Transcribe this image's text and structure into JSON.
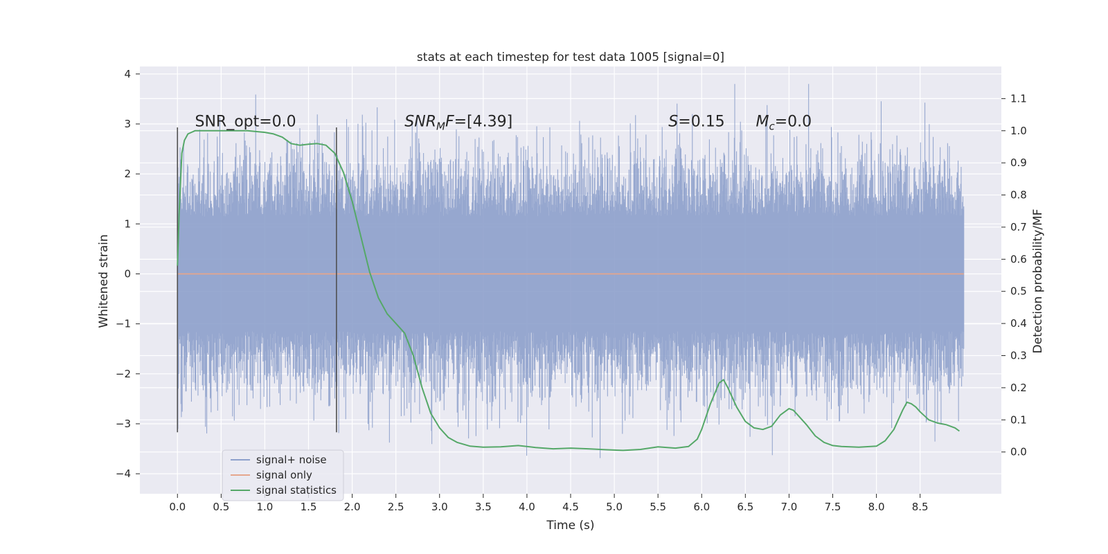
{
  "chart_data": {
    "type": "line",
    "title": "stats at each timestep for test data 1005 [signal=0]",
    "xlabel": "Time (s)",
    "ylabel": "Whitened strain",
    "y2label": "Detection probability/MF",
    "xlim": [
      -0.43,
      9.43
    ],
    "ylim": [
      -4.4,
      4.15
    ],
    "y2lim": [
      -0.13,
      1.2
    ],
    "xticks": [
      0.0,
      0.5,
      1.0,
      1.5,
      2.0,
      2.5,
      3.0,
      3.5,
      4.0,
      4.5,
      5.0,
      5.5,
      6.0,
      6.5,
      7.0,
      7.5,
      8.0,
      8.5
    ],
    "xtick_labels": [
      "0.0",
      "0.5",
      "1.0",
      "1.5",
      "2.0",
      "2.5",
      "3.0",
      "3.5",
      "4.0",
      "4.5",
      "5.0",
      "5.5",
      "6.0",
      "6.5",
      "7.0",
      "7.5",
      "8.0",
      "8.5"
    ],
    "yticks": [
      -4,
      -3,
      -2,
      -1,
      0,
      1,
      2,
      3,
      4
    ],
    "ytick_labels": [
      "−4",
      "−3",
      "−2",
      "−1",
      "0",
      "1",
      "2",
      "3",
      "4"
    ],
    "y2ticks": [
      0.0,
      0.1,
      0.2,
      0.3,
      0.4,
      0.5,
      0.6,
      0.7,
      0.8,
      0.9,
      1.0,
      1.1
    ],
    "y2tick_labels": [
      "0.0",
      "0.1",
      "0.2",
      "0.3",
      "0.4",
      "0.5",
      "0.6",
      "0.7",
      "0.8",
      "0.9",
      "1.0",
      "1.1"
    ],
    "grid": true,
    "legend_position": "lower-left",
    "series": [
      {
        "name": "signal+ noise",
        "color": "#8da0cb",
        "kind": "noise",
        "x_range": [
          0.0,
          9.0
        ],
        "typical_range": [
          -1.9,
          1.9
        ],
        "extremes": [
          -4.0,
          3.8
        ]
      },
      {
        "name": "signal only",
        "color": "#e5a68c",
        "x": [
          0.0,
          9.0
        ],
        "y": [
          0.0,
          0.0
        ]
      },
      {
        "name": "signal statistics",
        "color": "#55a868",
        "axis": "right",
        "x": [
          0.0,
          0.02,
          0.05,
          0.08,
          0.12,
          0.16,
          0.2,
          0.3,
          0.5,
          0.8,
          1.0,
          1.1,
          1.2,
          1.3,
          1.4,
          1.5,
          1.6,
          1.7,
          1.8,
          1.9,
          2.0,
          2.1,
          2.2,
          2.3,
          2.4,
          2.5,
          2.6,
          2.7,
          2.8,
          2.9,
          3.0,
          3.1,
          3.2,
          3.35,
          3.5,
          3.7,
          3.9,
          4.1,
          4.3,
          4.5,
          4.7,
          4.9,
          5.1,
          5.3,
          5.5,
          5.7,
          5.85,
          5.95,
          6.0,
          6.1,
          6.2,
          6.25,
          6.3,
          6.4,
          6.5,
          6.6,
          6.7,
          6.8,
          6.9,
          7.0,
          7.05,
          7.1,
          7.2,
          7.3,
          7.4,
          7.5,
          7.6,
          7.8,
          8.0,
          8.1,
          8.2,
          8.3,
          8.35,
          8.4,
          8.45,
          8.5,
          8.6,
          8.7,
          8.8,
          8.9,
          8.95
        ],
        "y": [
          0.58,
          0.75,
          0.93,
          0.97,
          0.99,
          0.995,
          1.0,
          1.0,
          1.0,
          1.0,
          0.995,
          0.99,
          0.98,
          0.96,
          0.955,
          0.958,
          0.96,
          0.955,
          0.93,
          0.87,
          0.78,
          0.67,
          0.56,
          0.48,
          0.43,
          0.4,
          0.37,
          0.3,
          0.2,
          0.12,
          0.075,
          0.045,
          0.03,
          0.018,
          0.015,
          0.016,
          0.02,
          0.014,
          0.01,
          0.012,
          0.01,
          0.007,
          0.005,
          0.008,
          0.016,
          0.012,
          0.017,
          0.04,
          0.07,
          0.15,
          0.215,
          0.225,
          0.2,
          0.14,
          0.095,
          0.075,
          0.07,
          0.08,
          0.115,
          0.135,
          0.13,
          0.115,
          0.085,
          0.05,
          0.03,
          0.02,
          0.017,
          0.015,
          0.018,
          0.035,
          0.07,
          0.13,
          0.155,
          0.15,
          0.14,
          0.125,
          0.1,
          0.09,
          0.085,
          0.075,
          0.065
        ]
      }
    ],
    "vlines": [
      0.0,
      1.82
    ],
    "annotations": [
      {
        "id": "snr-opt",
        "x": 0.2,
        "y": 2.95,
        "parts": [
          {
            "t": "SNR_opt=0.0",
            "s": "n"
          }
        ]
      },
      {
        "id": "snr-mf",
        "x": 2.6,
        "y": 2.95,
        "parts": [
          {
            "t": "SNR",
            "s": "i"
          },
          {
            "t": "M",
            "s": "isub"
          },
          {
            "t": "F",
            "s": "i"
          },
          {
            "t": "=[4.39]",
            "s": "n"
          }
        ]
      },
      {
        "id": "s",
        "x": 5.62,
        "y": 2.95,
        "parts": [
          {
            "t": "S",
            "s": "i"
          },
          {
            "t": "=0.15",
            "s": "n"
          }
        ]
      },
      {
        "id": "mc",
        "x": 6.62,
        "y": 2.95,
        "parts": [
          {
            "t": "M",
            "s": "i"
          },
          {
            "t": "c",
            "s": "isub"
          },
          {
            "t": "=0.0",
            "s": "n"
          }
        ]
      }
    ]
  }
}
